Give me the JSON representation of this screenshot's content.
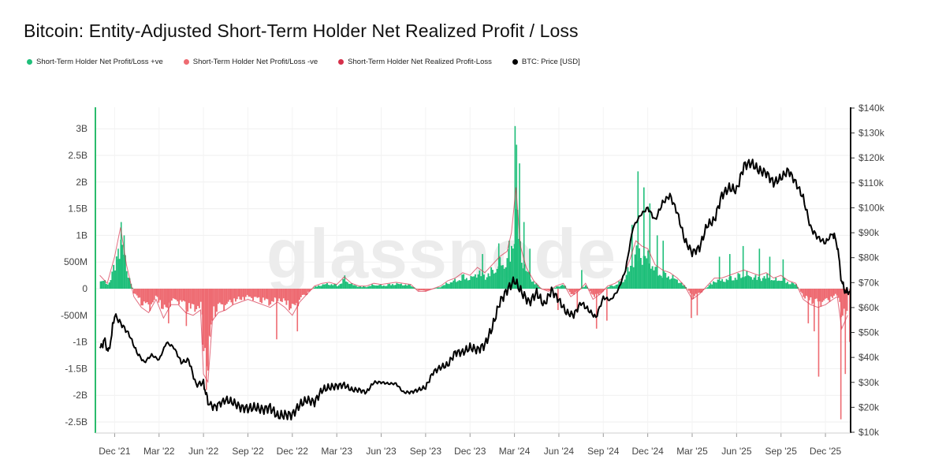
{
  "chart_data": {
    "type": "bar",
    "title": "Bitcoin: Entity-Adjusted Short-Term Holder Net Realized Profit / Loss",
    "watermark": "glassnode",
    "legend_placement": "top-left",
    "grid": true,
    "colors": {
      "profit": "#1fbf7a",
      "loss": "#ee6b72",
      "net": "#d6304a",
      "price": "#000000",
      "left_axis": "#2bbb6c"
    },
    "legend": [
      {
        "label": "Short-Term Holder Net Profit/Loss +ve",
        "color": "#1fbf7a"
      },
      {
        "label": "Short-Term Holder Net Profit/Loss -ve",
        "color": "#ee6b72"
      },
      {
        "label": "Short-Term Holder Net Realized Profit-Loss",
        "color": "#d6304a"
      },
      {
        "label": "BTC: Price [USD]",
        "color": "#000000"
      }
    ],
    "x_tick_labels": [
      "Dec '21",
      "Mar '22",
      "Jun '22",
      "Sep '22",
      "Dec '22",
      "Mar '23",
      "Jun '23",
      "Sep '23",
      "Dec '23",
      "Mar '24",
      "Jun '24",
      "Sep '24",
      "Dec '24",
      "Mar '25",
      "Jun '25",
      "Sep '25",
      "Dec '25"
    ],
    "x_tick_months": [
      1,
      4,
      7,
      10,
      13,
      16,
      19,
      22,
      25,
      28,
      31,
      34,
      37,
      40,
      43,
      46,
      49
    ],
    "x_range_months": [
      -0.3,
      50.7
    ],
    "left_axis": {
      "tick_labels": [
        "3B",
        "2.5B",
        "2B",
        "1.5B",
        "1B",
        "500M",
        "0",
        "-500M",
        "-1B",
        "-1.5B",
        "-2B",
        "-2.5B"
      ],
      "tick_values": [
        3,
        2.5,
        2,
        1.5,
        1,
        0.5,
        0,
        -0.5,
        -1,
        -1.5,
        -2,
        -2.5
      ],
      "range_billions": [
        -2.7,
        3.4
      ]
    },
    "right_axis": {
      "tick_labels": [
        "$140k",
        "$130k",
        "$120k",
        "$110k",
        "$100k",
        "$90k",
        "$80k",
        "$70k",
        "$60k",
        "$50k",
        "$40k",
        "$30k",
        "$20k",
        "$10k"
      ],
      "tick_values": [
        140,
        130,
        120,
        110,
        100,
        90,
        80,
        70,
        60,
        50,
        40,
        30,
        20,
        10
      ],
      "range_k": [
        10,
        140
      ]
    },
    "net_pl_series": {
      "name": "Short-Term Holder Net Realized Profit-Loss",
      "unit": "billions USD",
      "points": [
        [
          0,
          0.25
        ],
        [
          0.5,
          0.1
        ],
        [
          1,
          0.6
        ],
        [
          1.4,
          1.15
        ],
        [
          1.8,
          0.45
        ],
        [
          2.3,
          -0.15
        ],
        [
          2.8,
          -0.35
        ],
        [
          3.3,
          -0.45
        ],
        [
          3.8,
          -0.2
        ],
        [
          4.3,
          -0.55
        ],
        [
          4.8,
          -0.3
        ],
        [
          5.3,
          -0.3
        ],
        [
          5.8,
          -0.45
        ],
        [
          6.3,
          -0.5
        ],
        [
          6.8,
          -0.4
        ],
        [
          7.0,
          -1.6
        ],
        [
          7.3,
          -1.75
        ],
        [
          7.6,
          -0.6
        ],
        [
          8.0,
          -0.45
        ],
        [
          8.5,
          -0.4
        ],
        [
          9,
          -0.3
        ],
        [
          9.5,
          -0.25
        ],
        [
          10,
          -0.2
        ],
        [
          10.5,
          -0.25
        ],
        [
          11,
          -0.3
        ],
        [
          11.5,
          -0.35
        ],
        [
          12,
          -0.25
        ],
        [
          12.5,
          -0.35
        ],
        [
          13,
          -0.5
        ],
        [
          13.5,
          -0.25
        ],
        [
          14,
          -0.1
        ],
        [
          14.5,
          0.05
        ],
        [
          15,
          0.1
        ],
        [
          15.5,
          0.12
        ],
        [
          16,
          0.08
        ],
        [
          16.5,
          0.22
        ],
        [
          17,
          0.1
        ],
        [
          17.5,
          0.05
        ],
        [
          18,
          0.05
        ],
        [
          18.5,
          0.1
        ],
        [
          19,
          0.08
        ],
        [
          19.5,
          0.1
        ],
        [
          20,
          0.12
        ],
        [
          20.5,
          0.1
        ],
        [
          21,
          0.08
        ],
        [
          21.5,
          -0.05
        ],
        [
          22,
          -0.05
        ],
        [
          22.5,
          0.0
        ],
        [
          23,
          0.05
        ],
        [
          23.5,
          0.15
        ],
        [
          24,
          0.2
        ],
        [
          24.5,
          0.3
        ],
        [
          25,
          0.25
        ],
        [
          25.5,
          0.4
        ],
        [
          26,
          0.3
        ],
        [
          26.5,
          0.45
        ],
        [
          27,
          0.6
        ],
        [
          27.5,
          0.7
        ],
        [
          27.8,
          1.05
        ],
        [
          28.1,
          1.9
        ],
        [
          28.4,
          0.8
        ],
        [
          28.8,
          0.4
        ],
        [
          29.3,
          0.15
        ],
        [
          29.8,
          0.0
        ],
        [
          30.3,
          -0.05
        ],
        [
          30.8,
          0.05
        ],
        [
          31.3,
          0.1
        ],
        [
          31.8,
          -0.15
        ],
        [
          32.3,
          -0.05
        ],
        [
          32.8,
          0.1
        ],
        [
          33.3,
          -0.2
        ],
        [
          33.8,
          -0.1
        ],
        [
          34.3,
          0.05
        ],
        [
          34.8,
          0.1
        ],
        [
          35.3,
          0.2
        ],
        [
          35.8,
          0.55
        ],
        [
          36.2,
          0.9
        ],
        [
          36.6,
          0.8
        ],
        [
          37.0,
          0.75
        ],
        [
          37.5,
          0.45
        ],
        [
          38,
          0.35
        ],
        [
          38.5,
          0.3
        ],
        [
          39,
          0.2
        ],
        [
          39.5,
          0.05
        ],
        [
          40,
          -0.2
        ],
        [
          40.5,
          -0.1
        ],
        [
          41,
          0.05
        ],
        [
          41.5,
          0.2
        ],
        [
          42,
          0.2
        ],
        [
          42.5,
          0.25
        ],
        [
          43,
          0.3
        ],
        [
          43.5,
          0.35
        ],
        [
          44,
          0.3
        ],
        [
          44.5,
          0.25
        ],
        [
          45,
          0.3
        ],
        [
          45.5,
          0.2
        ],
        [
          46,
          0.25
        ],
        [
          46.5,
          0.15
        ],
        [
          47,
          0.1
        ],
        [
          47.5,
          -0.2
        ],
        [
          48,
          -0.3
        ],
        [
          48.5,
          -0.35
        ],
        [
          49,
          -0.3
        ],
        [
          49.5,
          -0.2
        ],
        [
          49.8,
          -0.15
        ],
        [
          50.1,
          -0.75
        ],
        [
          50.5,
          -0.5
        ]
      ]
    },
    "profit_spikes": {
      "name": "Short-Term Holder Net Profit/Loss +ve",
      "unit": "billions USD",
      "points": [
        [
          1.4,
          1.25
        ],
        [
          1.6,
          1.0
        ],
        [
          1.2,
          0.75
        ],
        [
          16.5,
          0.25
        ],
        [
          25.8,
          0.65
        ],
        [
          26.9,
          0.85
        ],
        [
          27.6,
          0.9
        ],
        [
          28.0,
          3.05
        ],
        [
          28.1,
          2.7
        ],
        [
          28.3,
          2.35
        ],
        [
          28.6,
          1.25
        ],
        [
          29.0,
          0.75
        ],
        [
          32.5,
          0.35
        ],
        [
          35.9,
          1.2
        ],
        [
          36.3,
          2.2
        ],
        [
          36.7,
          1.9
        ],
        [
          37.1,
          1.6
        ],
        [
          37.6,
          1.0
        ],
        [
          38.0,
          0.9
        ],
        [
          41.8,
          0.6
        ],
        [
          42.5,
          0.65
        ],
        [
          43.4,
          0.8
        ],
        [
          44.5,
          0.75
        ],
        [
          45.2,
          0.6
        ],
        [
          46.1,
          0.55
        ]
      ]
    },
    "loss_spikes": {
      "name": "Short-Term Holder Net Profit/Loss -ve",
      "unit": "billions USD",
      "points": [
        [
          4.6,
          -0.65
        ],
        [
          5.8,
          -0.7
        ],
        [
          6.9,
          -1.05
        ],
        [
          7.15,
          -1.9
        ],
        [
          7.4,
          -0.9
        ],
        [
          11.9,
          -0.95
        ],
        [
          13.3,
          -0.8
        ],
        [
          30.9,
          -0.4
        ],
        [
          32.2,
          -0.45
        ],
        [
          33.5,
          -0.75
        ],
        [
          34.2,
          -0.6
        ],
        [
          39.9,
          -0.55
        ],
        [
          40.3,
          -0.5
        ],
        [
          47.8,
          -0.65
        ],
        [
          48.2,
          -0.8
        ],
        [
          48.5,
          -1.65
        ],
        [
          50.0,
          -2.45
        ],
        [
          50.3,
          -1.6
        ],
        [
          50.6,
          -1.0
        ]
      ]
    },
    "price_series": {
      "name": "BTC: Price [USD]",
      "unit": "thousands USD",
      "points": [
        [
          0,
          43
        ],
        [
          0.3,
          47
        ],
        [
          0.6,
          42
        ],
        [
          1,
          57
        ],
        [
          1.5,
          53
        ],
        [
          2,
          49
        ],
        [
          2.5,
          42
        ],
        [
          3,
          38
        ],
        [
          3.5,
          41
        ],
        [
          4,
          39
        ],
        [
          4.5,
          46
        ],
        [
          5,
          44
        ],
        [
          5.5,
          38
        ],
        [
          6,
          39
        ],
        [
          6.5,
          29
        ],
        [
          7,
          30
        ],
        [
          7.3,
          22
        ],
        [
          7.7,
          20
        ],
        [
          8,
          21
        ],
        [
          8.5,
          23
        ],
        [
          9,
          22
        ],
        [
          9.5,
          20
        ],
        [
          10,
          19.5
        ],
        [
          10.5,
          20
        ],
        [
          11,
          19
        ],
        [
          11.5,
          20
        ],
        [
          12,
          16.5
        ],
        [
          12.5,
          17
        ],
        [
          13,
          17
        ],
        [
          13.5,
          21
        ],
        [
          14,
          23
        ],
        [
          14.5,
          22
        ],
        [
          15,
          27
        ],
        [
          15.5,
          28
        ],
        [
          16,
          28.5
        ],
        [
          16.5,
          29
        ],
        [
          17,
          27
        ],
        [
          17.5,
          27
        ],
        [
          18,
          26
        ],
        [
          18.5,
          30
        ],
        [
          19,
          30
        ],
        [
          19.5,
          29.5
        ],
        [
          20,
          29.5
        ],
        [
          20.5,
          26
        ],
        [
          21,
          26
        ],
        [
          21.5,
          27
        ],
        [
          22,
          28
        ],
        [
          22.5,
          34
        ],
        [
          23,
          36
        ],
        [
          23.5,
          37
        ],
        [
          24,
          42
        ],
        [
          24.5,
          42
        ],
        [
          25,
          44
        ],
        [
          25.5,
          43
        ],
        [
          26,
          45
        ],
        [
          26.5,
          52
        ],
        [
          27,
          62
        ],
        [
          27.5,
          67
        ],
        [
          28,
          71
        ],
        [
          28.5,
          66
        ],
        [
          29,
          62
        ],
        [
          29.5,
          66
        ],
        [
          30,
          61
        ],
        [
          30.5,
          67
        ],
        [
          31,
          63
        ],
        [
          31.5,
          58
        ],
        [
          32,
          57
        ],
        [
          32.5,
          62
        ],
        [
          33,
          59
        ],
        [
          33.5,
          56
        ],
        [
          34,
          64
        ],
        [
          34.5,
          63
        ],
        [
          35,
          67
        ],
        [
          35.5,
          75
        ],
        [
          36,
          92
        ],
        [
          36.5,
          97
        ],
        [
          37,
          100
        ],
        [
          37.5,
          95
        ],
        [
          38,
          102
        ],
        [
          38.5,
          105
        ],
        [
          39,
          98
        ],
        [
          39.5,
          87
        ],
        [
          40,
          82
        ],
        [
          40.5,
          84
        ],
        [
          41,
          93
        ],
        [
          41.5,
          95
        ],
        [
          42,
          105
        ],
        [
          42.5,
          108
        ],
        [
          43,
          107
        ],
        [
          43.5,
          117
        ],
        [
          44,
          118
        ],
        [
          44.5,
          115
        ],
        [
          45,
          114
        ],
        [
          45.5,
          110
        ],
        [
          46,
          112
        ],
        [
          46.5,
          115
        ],
        [
          47,
          110
        ],
        [
          47.5,
          104
        ],
        [
          48,
          92
        ],
        [
          48.5,
          88
        ],
        [
          49,
          86
        ],
        [
          49.5,
          90
        ],
        [
          49.8,
          85
        ],
        [
          50.1,
          70
        ],
        [
          50.4,
          66
        ],
        [
          50.7,
          67
        ]
      ]
    }
  }
}
